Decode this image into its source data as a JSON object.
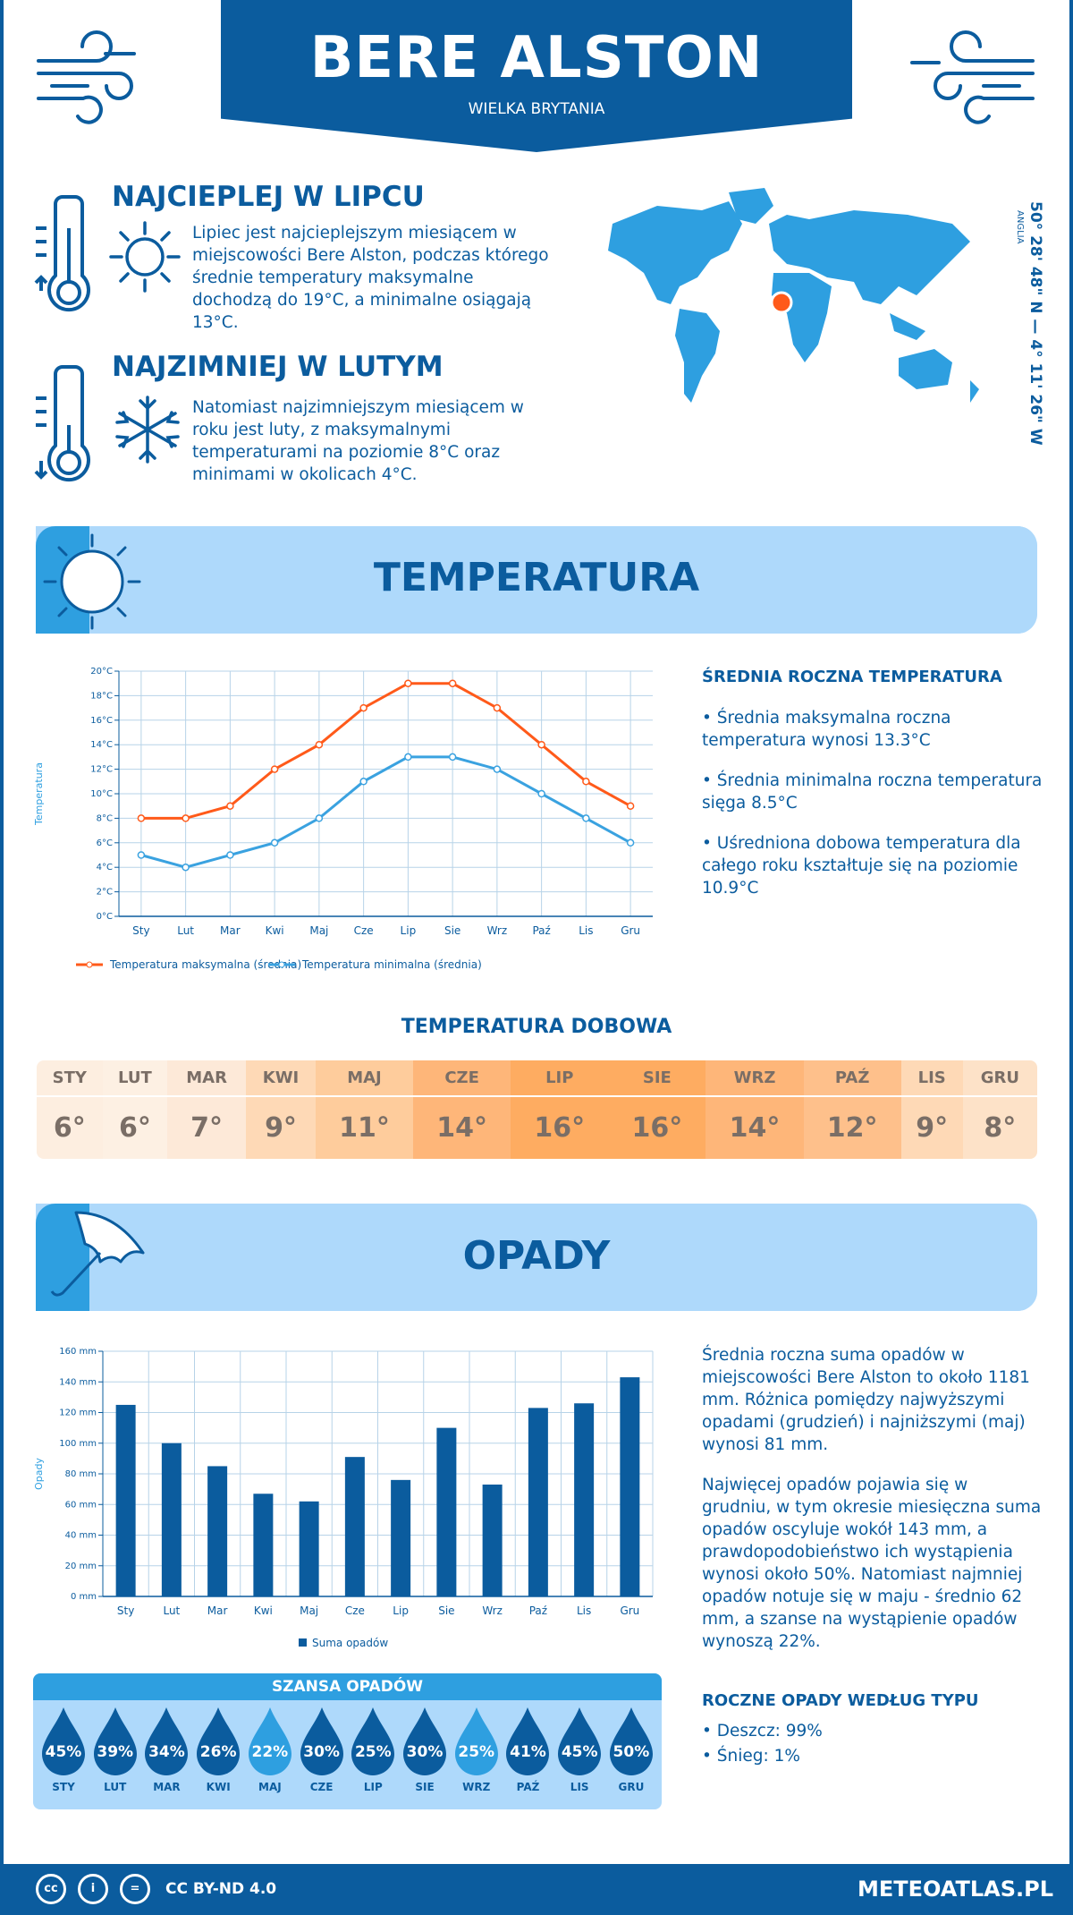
{
  "header": {
    "title": "BERE ALSTON",
    "subtitle": "WIELKA BRYTANIA"
  },
  "warmest": {
    "title": "NAJCIEPLEJ W LIPCU",
    "text": "Lipiec jest najcieplejszym miesiącem w miejscowości Bere Alston, podczas którego średnie temperatury maksymalne dochodzą do 19°C, a minimalne osiągają 13°C."
  },
  "coldest": {
    "title": "NAJZIMNIEJ W LUTYM",
    "text": "Natomiast najzimniejszym miesiącem w roku jest luty, z maksymalnymi temperaturami na poziomie 8°C oraz minimami w okolicach 4°C."
  },
  "location": {
    "coords": "50° 28' 48\" N — 4° 11' 26\" W",
    "region": "ANGLIA"
  },
  "temperature": {
    "section_title": "TEMPERATURA",
    "summary_title": "ŚREDNIA ROCZNA TEMPERATURA",
    "bullets": [
      "• Średnia maksymalna roczna temperatura wynosi 13.3°C",
      "• Średnia minimalna roczna temperatura sięga 8.5°C",
      "• Uśredniona dobowa temperatura dla całego roku kształtuje się na poziomie 10.9°C"
    ],
    "daily_title": "TEMPERATURA DOBOWA",
    "daily_months": [
      "STY",
      "LUT",
      "MAR",
      "KWI",
      "MAJ",
      "CZE",
      "LIP",
      "SIE",
      "WRZ",
      "PAŹ",
      "LIS",
      "GRU"
    ],
    "daily_values": [
      "6°",
      "6°",
      "7°",
      "9°",
      "11°",
      "14°",
      "16°",
      "16°",
      "14°",
      "12°",
      "9°",
      "8°"
    ],
    "daily_colors": [
      "#fdeee0",
      "#fdf0e3",
      "#fde9d8",
      "#fed9b6",
      "#fecc9c",
      "#feb679",
      "#feac61",
      "#feac61",
      "#feb679",
      "#fec08b",
      "#fed9b6",
      "#fde2c8"
    ]
  },
  "chart_data": [
    {
      "type": "line",
      "categories": [
        "Sty",
        "Lut",
        "Mar",
        "Kwi",
        "Maj",
        "Cze",
        "Lip",
        "Sie",
        "Wrz",
        "Paź",
        "Lis",
        "Gru"
      ],
      "series": [
        {
          "name": "Temperatura maksymalna (średnia)",
          "color": "#ff5a1a",
          "values": [
            8,
            8,
            9,
            12,
            14,
            17,
            19,
            19,
            17,
            14,
            11,
            9
          ]
        },
        {
          "name": "Temperatura minimalna (średnia)",
          "color": "#3aa2e0",
          "values": [
            5,
            4,
            5,
            6,
            8,
            11,
            13,
            13,
            12,
            10,
            8,
            6
          ]
        }
      ],
      "ylabel": "Temperatura",
      "ylim": [
        0,
        20
      ],
      "yticks": [
        "0°C",
        "2°C",
        "4°C",
        "6°C",
        "8°C",
        "10°C",
        "12°C",
        "14°C",
        "16°C",
        "18°C",
        "20°C"
      ],
      "grid": true,
      "legend": "bottom"
    },
    {
      "type": "bar",
      "categories": [
        "Sty",
        "Lut",
        "Mar",
        "Kwi",
        "Maj",
        "Cze",
        "Lip",
        "Sie",
        "Wrz",
        "Paź",
        "Lis",
        "Gru"
      ],
      "series": [
        {
          "name": "Suma opadów",
          "color": "#0b5c9e",
          "values": [
            125,
            100,
            85,
            67,
            62,
            91,
            76,
            110,
            73,
            123,
            126,
            143
          ]
        }
      ],
      "ylabel": "Opady",
      "ylim": [
        0,
        160
      ],
      "yticks": [
        "0 mm",
        "20 mm",
        "40 mm",
        "60 mm",
        "80 mm",
        "100 mm",
        "120 mm",
        "140 mm",
        "160 mm"
      ],
      "grid": true,
      "legend": "bottom"
    }
  ],
  "precipitation": {
    "section_title": "OPADY",
    "text1": "Średnia roczna suma opadów w miejscowości Bere Alston to około 1181 mm. Różnica pomiędzy najwyższymi opadami (grudzień) i najniższymi (maj) wynosi 81 mm.",
    "text2": "Najwięcej opadów pojawia się w grudniu, w tym okresie miesięczna suma opadów oscyluje wokół 143 mm, a prawdopodobieństwo ich wystąpienia wynosi około 50%. Natomiast najmniej opadów notuje się w maju - średnio 62 mm, a szanse na wystąpienie opadów wynoszą 22%.",
    "chance_title": "SZANSA OPADÓW",
    "chance": [
      {
        "m": "STY",
        "v": "45%"
      },
      {
        "m": "LUT",
        "v": "39%"
      },
      {
        "m": "MAR",
        "v": "34%"
      },
      {
        "m": "KWI",
        "v": "26%"
      },
      {
        "m": "MAJ",
        "v": "22%",
        "light": true
      },
      {
        "m": "CZE",
        "v": "30%"
      },
      {
        "m": "LIP",
        "v": "25%"
      },
      {
        "m": "SIE",
        "v": "30%"
      },
      {
        "m": "WRZ",
        "v": "25%",
        "light": true
      },
      {
        "m": "PAŹ",
        "v": "41%"
      },
      {
        "m": "LIS",
        "v": "45%"
      },
      {
        "m": "GRU",
        "v": "50%"
      }
    ],
    "type_title": "ROCZNE OPADY WEDŁUG TYPU",
    "types": [
      "• Deszcz: 99%",
      "• Śnieg: 1%"
    ]
  },
  "footer": {
    "license": "CC BY-ND 4.0",
    "site": "METEOATLAS.PL",
    "icons": [
      "cc-icon",
      "by-icon",
      "nd-icon"
    ]
  }
}
